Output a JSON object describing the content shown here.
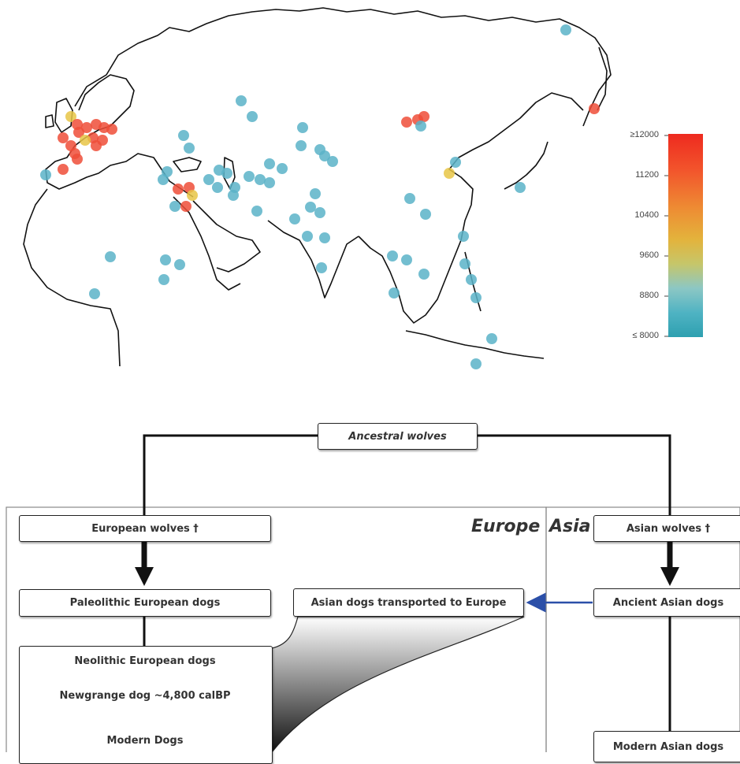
{
  "map": {
    "legend_ticks": [
      "≥12000",
      "11200",
      "10400",
      "9600",
      "8800",
      "≤ 8000"
    ],
    "color_scale": [
      "#2ea0b0",
      "#4fb3c3",
      "#8cc7c4",
      "#c6c66a",
      "#e3b33c",
      "#ee8a33",
      "#f2552c",
      "#ee2a1f"
    ],
    "site_colors": {
      "old": "#ee4e38",
      "mid": "#e8c547",
      "young": "#5ab3c8"
    }
  },
  "diagram": {
    "ancestral_wolves": "Ancestral wolves",
    "europe_label": "Europe",
    "asia_label": "Asia",
    "european_wolves": "European wolves †",
    "asian_wolves": "Asian wolves †",
    "paleolithic_dogs": "Paleolithic European dogs",
    "asian_dogs_transported": "Asian dogs transported to Europe",
    "ancient_asian_dogs": "Ancient Asian dogs",
    "neolithic_dogs": "Neolithic European dogs",
    "newgrange_dog": "Newgrange dog ~4,800 calBP",
    "modern_dogs": "Modern Dogs",
    "modern_asian_dogs": "Modern Asian dogs"
  }
}
